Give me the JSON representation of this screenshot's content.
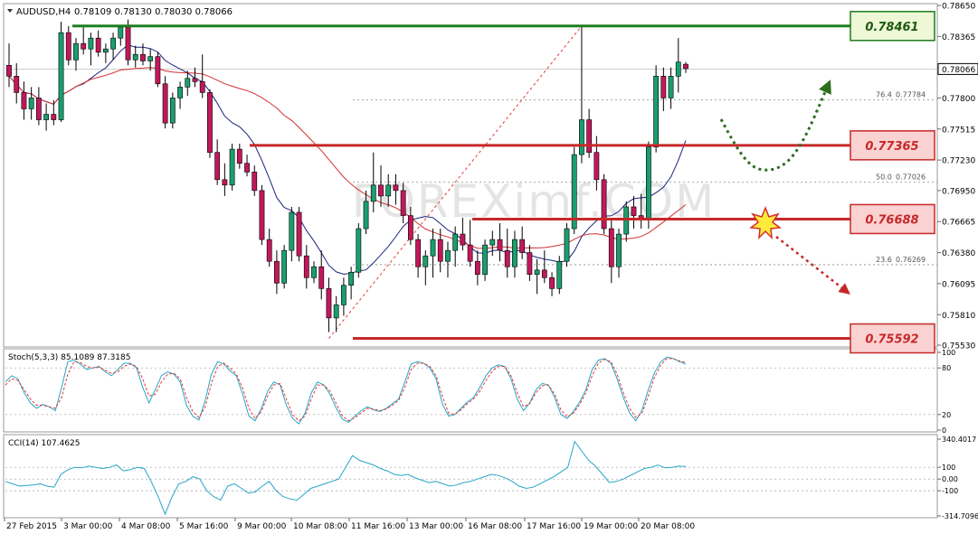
{
  "header": {
    "symbol": "AUDUSD,H4",
    "ohlc": "0.78109 0.78130 0.78030 0.78066"
  },
  "watermark": "FOREXimf.COM",
  "chart_data": [
    {
      "type": "candlestick",
      "symbol": "AUDUSD",
      "timeframe": "H4",
      "ylim": [
        0.7553,
        0.7865
      ],
      "y_ticks": [
        "0.78650",
        "0.78365",
        "0.78080",
        "0.77800",
        "0.77515",
        "0.77230",
        "0.76950",
        "0.76665",
        "0.76380",
        "0.76095",
        "0.75810",
        "0.75530"
      ],
      "last_price": "0.78066",
      "x_labels": [
        "27 Feb 2015",
        "3 Mar 00:00",
        "4 Mar 08:00",
        "5 Mar 16:00",
        "9 Mar 00:00",
        "10 Mar 08:00",
        "11 Mar 16:00",
        "13 Mar 00:00",
        "16 Mar 08:00",
        "17 Mar 16:00",
        "19 Mar 00:00",
        "20 Mar 08:00"
      ],
      "candles": [
        [
          0.781,
          0.783,
          0.779,
          0.78
        ],
        [
          0.78,
          0.7812,
          0.7775,
          0.7785
        ],
        [
          0.7785,
          0.7795,
          0.776,
          0.777
        ],
        [
          0.777,
          0.779,
          0.776,
          0.778
        ],
        [
          0.778,
          0.779,
          0.7755,
          0.776
        ],
        [
          0.776,
          0.7775,
          0.775,
          0.7765
        ],
        [
          0.7765,
          0.7778,
          0.7755,
          0.776
        ],
        [
          0.776,
          0.785,
          0.7758,
          0.784
        ],
        [
          0.784,
          0.7846,
          0.781,
          0.7815
        ],
        [
          0.7815,
          0.7835,
          0.7805,
          0.783
        ],
        [
          0.783,
          0.7845,
          0.782,
          0.7825
        ],
        [
          0.7825,
          0.784,
          0.781,
          0.7835
        ],
        [
          0.7835,
          0.7842,
          0.7818,
          0.7822
        ],
        [
          0.7822,
          0.783,
          0.7812,
          0.7825
        ],
        [
          0.7825,
          0.784,
          0.7815,
          0.7835
        ],
        [
          0.7835,
          0.7847,
          0.7828,
          0.7845
        ],
        [
          0.7845,
          0.7852,
          0.781,
          0.7815
        ],
        [
          0.7815,
          0.7828,
          0.7808,
          0.782
        ],
        [
          0.782,
          0.783,
          0.781,
          0.7814
        ],
        [
          0.7814,
          0.7825,
          0.7805,
          0.7818
        ],
        [
          0.7818,
          0.7822,
          0.779,
          0.7793
        ],
        [
          0.7793,
          0.78,
          0.7752,
          0.7757
        ],
        [
          0.7757,
          0.7785,
          0.7752,
          0.778
        ],
        [
          0.778,
          0.7795,
          0.777,
          0.779
        ],
        [
          0.779,
          0.7805,
          0.7782,
          0.7798
        ],
        [
          0.7798,
          0.7808,
          0.779,
          0.7795
        ],
        [
          0.7795,
          0.782,
          0.778,
          0.7785
        ],
        [
          0.7785,
          0.7788,
          0.7725,
          0.773
        ],
        [
          0.773,
          0.7742,
          0.77,
          0.7705
        ],
        [
          0.7705,
          0.772,
          0.769,
          0.77
        ],
        [
          0.77,
          0.7738,
          0.7695,
          0.7733
        ],
        [
          0.7733,
          0.7738,
          0.7715,
          0.772
        ],
        [
          0.772,
          0.7728,
          0.7708,
          0.7712
        ],
        [
          0.7712,
          0.7718,
          0.769,
          0.7695
        ],
        [
          0.7695,
          0.77,
          0.7645,
          0.765
        ],
        [
          0.765,
          0.766,
          0.7625,
          0.763
        ],
        [
          0.763,
          0.764,
          0.76,
          0.761
        ],
        [
          0.761,
          0.7645,
          0.7605,
          0.764
        ],
        [
          0.764,
          0.768,
          0.763,
          0.7675
        ],
        [
          0.7675,
          0.768,
          0.763,
          0.7635
        ],
        [
          0.7635,
          0.7645,
          0.7605,
          0.7615
        ],
        [
          0.7615,
          0.763,
          0.761,
          0.7625
        ],
        [
          0.7625,
          0.764,
          0.7595,
          0.7605
        ],
        [
          0.7605,
          0.7615,
          0.7565,
          0.7578
        ],
        [
          0.7578,
          0.7598,
          0.7565,
          0.759
        ],
        [
          0.759,
          0.7615,
          0.758,
          0.7608
        ],
        [
          0.7608,
          0.7625,
          0.7595,
          0.762
        ],
        [
          0.762,
          0.7665,
          0.7615,
          0.766
        ],
        [
          0.766,
          0.7695,
          0.7655,
          0.7685
        ],
        [
          0.7685,
          0.773,
          0.7675,
          0.77
        ],
        [
          0.77,
          0.7718,
          0.768,
          0.769
        ],
        [
          0.769,
          0.771,
          0.768,
          0.77
        ],
        [
          0.77,
          0.771,
          0.7682,
          0.7695
        ],
        [
          0.7695,
          0.7702,
          0.7665,
          0.7672
        ],
        [
          0.7672,
          0.768,
          0.7645,
          0.765
        ],
        [
          0.765,
          0.7655,
          0.7615,
          0.7625
        ],
        [
          0.7625,
          0.764,
          0.7608,
          0.7635
        ],
        [
          0.7635,
          0.766,
          0.7615,
          0.765
        ],
        [
          0.765,
          0.766,
          0.762,
          0.763
        ],
        [
          0.763,
          0.7648,
          0.7615,
          0.764
        ],
        [
          0.764,
          0.7662,
          0.7625,
          0.7655
        ],
        [
          0.7655,
          0.767,
          0.764,
          0.7645
        ],
        [
          0.7645,
          0.7668,
          0.7625,
          0.763
        ],
        [
          0.763,
          0.764,
          0.7608,
          0.7618
        ],
        [
          0.7618,
          0.765,
          0.7612,
          0.7645
        ],
        [
          0.7645,
          0.7658,
          0.7635,
          0.765
        ],
        [
          0.765,
          0.7665,
          0.763,
          0.764
        ],
        [
          0.764,
          0.766,
          0.7615,
          0.7625
        ],
        [
          0.7625,
          0.7658,
          0.7615,
          0.765
        ],
        [
          0.765,
          0.7662,
          0.7632,
          0.7638
        ],
        [
          0.7638,
          0.7645,
          0.7612,
          0.7618
        ],
        [
          0.7618,
          0.7632,
          0.76,
          0.7622
        ],
        [
          0.7622,
          0.764,
          0.761,
          0.7615
        ],
        [
          0.7615,
          0.762,
          0.7598,
          0.7605
        ],
        [
          0.7605,
          0.7635,
          0.76,
          0.763
        ],
        [
          0.763,
          0.7665,
          0.7625,
          0.766
        ],
        [
          0.766,
          0.7735,
          0.7655,
          0.7728
        ],
        [
          0.7728,
          0.7846,
          0.772,
          0.776
        ],
        [
          0.776,
          0.777,
          0.7725,
          0.773
        ],
        [
          0.773,
          0.7745,
          0.7695,
          0.7705
        ],
        [
          0.7705,
          0.771,
          0.7655,
          0.766
        ],
        [
          0.766,
          0.767,
          0.761,
          0.7625
        ],
        [
          0.7625,
          0.766,
          0.7615,
          0.7655
        ],
        [
          0.7655,
          0.7685,
          0.7648,
          0.768
        ],
        [
          0.768,
          0.769,
          0.766,
          0.7672
        ],
        [
          0.7672,
          0.7692,
          0.766,
          0.7668
        ],
        [
          0.7668,
          0.774,
          0.766,
          0.7735
        ],
        [
          0.7735,
          0.781,
          0.773,
          0.78
        ],
        [
          0.78,
          0.7808,
          0.7768,
          0.778
        ],
        [
          0.778,
          0.7808,
          0.777,
          0.78
        ],
        [
          0.78,
          0.7835,
          0.7785,
          0.7813
        ],
        [
          0.7811,
          0.7813,
          0.7803,
          0.7807
        ]
      ],
      "overlays": [
        {
          "color": "#1a237e",
          "period": 10
        },
        {
          "color": "#d32f2f",
          "period": 30
        }
      ],
      "levels": [
        {
          "value": 0.78461,
          "label": "0.78461",
          "color": "#1e7d1e",
          "fill": "#eef7d6",
          "text": "#1e5a10"
        },
        {
          "value": 0.77365,
          "label": "0.77365",
          "color": "#c62828",
          "fill": "#fbd2d2",
          "text": "#c62828"
        },
        {
          "value": 0.76688,
          "label": "0.76688",
          "color": "#c62828",
          "fill": "#fbd2d2",
          "text": "#c62828"
        },
        {
          "value": 0.75592,
          "label": "0.75592",
          "color": "#c62828",
          "fill": "#fbd2d2",
          "text": "#c62828"
        }
      ],
      "fibonacci": [
        {
          "ratio": "76.4",
          "price": "0.77784",
          "value": 0.77784
        },
        {
          "ratio": "50.0",
          "price": "0.77026",
          "value": 0.77026
        },
        {
          "ratio": "23.6",
          "price": "0.76269",
          "value": 0.76269
        }
      ],
      "fib_line": {
        "from": 0.75592,
        "to": 0.78461
      }
    },
    {
      "type": "line",
      "name": "Stoch(5,3,3)",
      "label": "Stoch(5,3,3) 85.1089 87.3185",
      "ylim": [
        0,
        100
      ],
      "y_ticks": [
        "100",
        "80",
        "20",
        "0"
      ],
      "levels": [
        80,
        20
      ],
      "main": [
        62,
        70,
        66,
        48,
        35,
        28,
        33,
        30,
        25,
        55,
        88,
        90,
        85,
        78,
        80,
        82,
        75,
        70,
        78,
        86,
        86,
        80,
        55,
        35,
        52,
        70,
        75,
        72,
        62,
        32,
        18,
        13,
        38,
        72,
        88,
        85,
        76,
        70,
        46,
        18,
        12,
        28,
        50,
        62,
        58,
        32,
        15,
        8,
        22,
        48,
        62,
        58,
        46,
        28,
        14,
        10,
        18,
        25,
        30,
        26,
        24,
        28,
        34,
        40,
        62,
        85,
        88,
        86,
        80,
        66,
        34,
        18,
        20,
        28,
        36,
        42,
        55,
        70,
        80,
        84,
        82,
        66,
        40,
        25,
        35,
        52,
        60,
        58,
        42,
        20,
        15,
        24,
        36,
        52,
        78,
        90,
        92,
        86,
        66,
        42,
        22,
        12,
        26,
        52,
        74,
        88,
        94,
        92,
        88,
        85
      ],
      "signal": [
        58,
        66,
        64,
        52,
        40,
        32,
        32,
        30,
        28,
        42,
        72,
        88,
        87,
        82,
        80,
        81,
        77,
        73,
        75,
        82,
        85,
        82,
        66,
        44,
        46,
        62,
        72,
        73,
        66,
        42,
        24,
        16,
        30,
        60,
        82,
        86,
        80,
        72,
        54,
        28,
        15,
        24,
        44,
        58,
        60,
        40,
        20,
        12,
        18,
        40,
        58,
        58,
        50,
        34,
        18,
        12,
        16,
        22,
        28,
        27,
        25,
        27,
        32,
        38,
        55,
        78,
        86,
        86,
        82,
        70,
        44,
        22,
        20,
        26,
        34,
        40,
        50,
        64,
        76,
        82,
        82,
        70,
        48,
        30,
        34,
        48,
        57,
        58,
        46,
        26,
        17,
        22,
        33,
        48,
        70,
        86,
        91,
        88,
        72,
        48,
        28,
        16,
        22,
        44,
        68,
        84,
        92,
        92,
        89,
        87
      ]
    },
    {
      "type": "line",
      "name": "CCI(14)",
      "label": "CCI(14) 107.4625",
      "ylim": [
        -314.7096,
        340.4017
      ],
      "y_ticks": [
        "340.4017",
        "100",
        "0.00",
        "-100",
        "-314.7096"
      ],
      "levels": [
        100,
        0,
        -100
      ],
      "values": [
        -20,
        -40,
        -60,
        -55,
        -50,
        -40,
        -60,
        -70,
        40,
        80,
        100,
        95,
        110,
        100,
        90,
        100,
        120,
        70,
        80,
        100,
        90,
        -20,
        -150,
        -300,
        -150,
        -40,
        -20,
        20,
        0,
        -100,
        -150,
        -180,
        -60,
        -40,
        -80,
        -120,
        -110,
        -60,
        -20,
        -100,
        -150,
        -170,
        -180,
        -130,
        -80,
        -60,
        -40,
        -20,
        0,
        100,
        200,
        160,
        140,
        120,
        90,
        70,
        40,
        30,
        40,
        10,
        -10,
        -30,
        -20,
        -40,
        -60,
        -50,
        -30,
        -20,
        0,
        20,
        40,
        30,
        10,
        -20,
        -60,
        -80,
        -70,
        -40,
        -10,
        20,
        60,
        100,
        320,
        240,
        160,
        110,
        40,
        -30,
        -20,
        0,
        30,
        60,
        90,
        100,
        120,
        95,
        100,
        110,
        107
      ]
    }
  ]
}
